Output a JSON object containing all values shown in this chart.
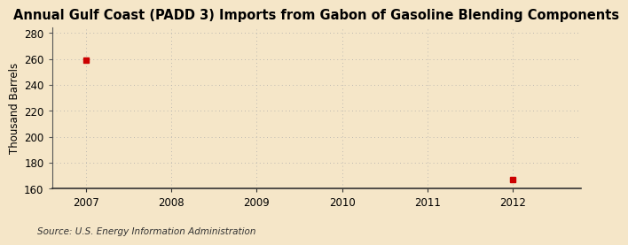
{
  "title": "Annual Gulf Coast (PADD 3) Imports from Gabon of Gasoline Blending Components",
  "ylabel": "Thousand Barrels",
  "source": "Source: U.S. Energy Information Administration",
  "background_color": "#f5e6c8",
  "plot_background_color": "#f5e6c8",
  "x_data": [
    2007,
    2012
  ],
  "y_data": [
    259,
    167
  ],
  "data_color": "#cc0000",
  "xlim": [
    2006.6,
    2012.8
  ],
  "ylim": [
    160,
    284
  ],
  "yticks": [
    160,
    180,
    200,
    220,
    240,
    260,
    280
  ],
  "xticks": [
    2007,
    2008,
    2009,
    2010,
    2011,
    2012
  ],
  "title_fontsize": 10.5,
  "axis_fontsize": 8.5,
  "tick_fontsize": 8.5,
  "source_fontsize": 7.5,
  "marker_size": 4
}
